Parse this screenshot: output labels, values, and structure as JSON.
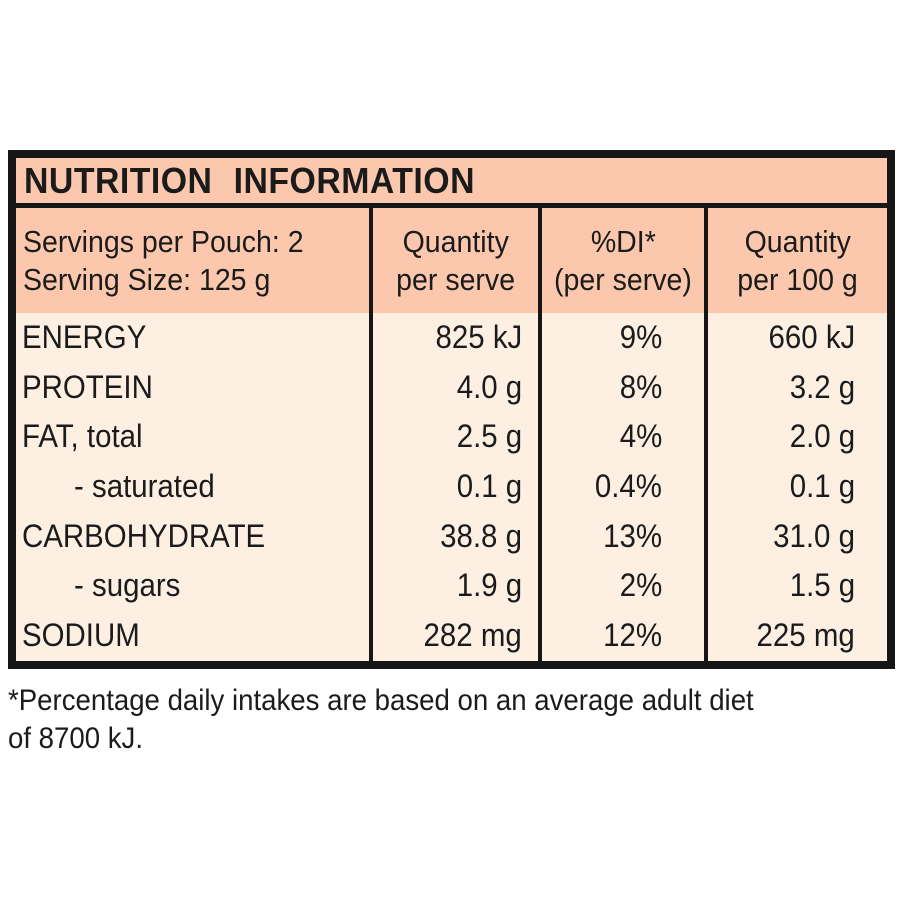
{
  "label": {
    "title": "NUTRITION INFORMATION",
    "serving_info": {
      "servings_per_pouch": "Servings per Pouch: 2",
      "serving_size": "Serving Size: 125 g"
    },
    "columns": [
      {
        "line1": "Quantity",
        "line2": "per serve"
      },
      {
        "line1": "%DI*",
        "line2": "(per serve)"
      },
      {
        "line1": "Quantity",
        "line2": "per 100 g"
      }
    ],
    "rows": [
      {
        "nutrient": "ENERGY",
        "per_serve": "825 kJ",
        "di_per_serve": "9%",
        "per_100g": "660 kJ"
      },
      {
        "nutrient": "PROTEIN",
        "per_serve": "4.0 g",
        "di_per_serve": "8%",
        "per_100g": "3.2 g"
      },
      {
        "nutrient": "FAT, total",
        "per_serve": "2.5 g",
        "di_per_serve": "4%",
        "per_100g": "2.0 g"
      },
      {
        "nutrient": "- saturated",
        "per_serve": "0.1 g",
        "di_per_serve": "0.4%",
        "per_100g": "0.1 g"
      },
      {
        "nutrient": "CARBOHYDRATE",
        "per_serve": "38.8 g",
        "di_per_serve": "13%",
        "per_100g": "31.0 g"
      },
      {
        "nutrient": "- sugars",
        "per_serve": "1.9 g",
        "di_per_serve": "2%",
        "per_100g": "1.5 g"
      },
      {
        "nutrient": "SODIUM",
        "per_serve": "282 mg",
        "di_per_serve": "12%",
        "per_100g": "225 mg"
      }
    ],
    "footnote_lines": [
      "*Percentage daily intakes are based on an average adult diet",
      "of 8700 kJ."
    ],
    "colors": {
      "header_bg": "#fbc8ad",
      "body_bg": "#fdf0e3",
      "border": "#161616",
      "text": "#1b1b1b",
      "page_bg": "#ffffff"
    }
  }
}
